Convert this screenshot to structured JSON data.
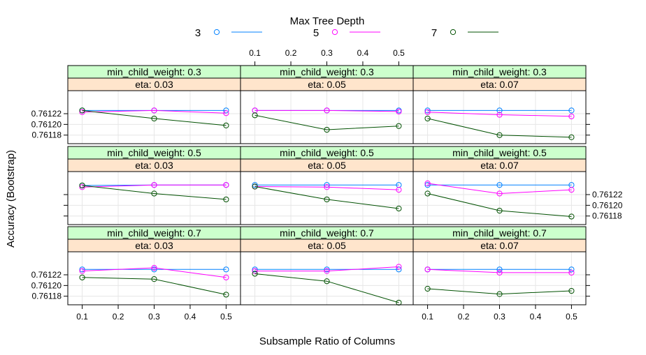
{
  "chart_data": {
    "type": "line",
    "title": "",
    "legend": {
      "title": "Max Tree Depth",
      "placement": "top",
      "entries": [
        "3",
        "5",
        "7"
      ]
    },
    "xlabel": "Subsample Ratio of Columns",
    "ylabel": "Accuracy (Bootstrap)",
    "x": [
      0.1,
      0.3,
      0.5
    ],
    "xlim": [
      0.06,
      0.54
    ],
    "ylim": [
      0.761164,
      0.761263
    ],
    "x_ticks": [
      "0.1",
      "0.2",
      "0.3",
      "0.4",
      "0.5"
    ],
    "y_ticks": [
      "0.76118",
      "0.76120",
      "0.76122"
    ],
    "grid": true,
    "colors": {
      "3": "#0080ff",
      "5": "#ff00ff",
      "7": "#005000",
      "strip_top": "#ccffcc",
      "strip_bottom": "#ffe5cc"
    },
    "panels": [
      {
        "row": 0,
        "col": 0,
        "strip_top": "min_child_weight: 0.3",
        "strip_bottom": "eta: 0.03",
        "series": [
          {
            "name": "3",
            "values": [
              0.761226,
              0.761226,
              0.761226
            ]
          },
          {
            "name": "5",
            "values": [
              0.761223,
              0.761226,
              0.761221
            ]
          },
          {
            "name": "7",
            "values": [
              0.761226,
              0.761211,
              0.761198
            ]
          }
        ]
      },
      {
        "row": 0,
        "col": 1,
        "strip_top": "min_child_weight: 0.3",
        "strip_bottom": "eta: 0.05",
        "series": [
          {
            "name": "3",
            "values": [
              0.761226,
              0.761226,
              0.761226
            ]
          },
          {
            "name": "5",
            "values": [
              0.761226,
              0.761226,
              0.761224
            ]
          },
          {
            "name": "7",
            "values": [
              0.761217,
              0.76119,
              0.761197
            ]
          }
        ]
      },
      {
        "row": 0,
        "col": 2,
        "strip_top": "min_child_weight: 0.3",
        "strip_bottom": "eta: 0.07",
        "series": [
          {
            "name": "3",
            "values": [
              0.761226,
              0.761226,
              0.761226
            ]
          },
          {
            "name": "5",
            "values": [
              0.761223,
              0.761218,
              0.761215
            ]
          },
          {
            "name": "7",
            "values": [
              0.761211,
              0.76118,
              0.761176
            ]
          }
        ]
      },
      {
        "row": 1,
        "col": 0,
        "strip_top": "min_child_weight: 0.5",
        "strip_bottom": "eta: 0.03",
        "series": [
          {
            "name": "3",
            "values": [
              0.761237,
              0.761238,
              0.761238
            ]
          },
          {
            "name": "5",
            "values": [
              0.761234,
              0.761238,
              0.761238
            ]
          },
          {
            "name": "7",
            "values": [
              0.761237,
              0.761222,
              0.761211
            ]
          }
        ]
      },
      {
        "row": 1,
        "col": 1,
        "strip_top": "min_child_weight: 0.5",
        "strip_bottom": "eta: 0.05",
        "series": [
          {
            "name": "3",
            "values": [
              0.761238,
              0.761238,
              0.761238
            ]
          },
          {
            "name": "5",
            "values": [
              0.761235,
              0.761234,
              0.761229
            ]
          },
          {
            "name": "7",
            "values": [
              0.761235,
              0.761211,
              0.761194
            ]
          }
        ]
      },
      {
        "row": 1,
        "col": 2,
        "strip_top": "min_child_weight: 0.5",
        "strip_bottom": "eta: 0.07",
        "series": [
          {
            "name": "3",
            "values": [
              0.761238,
              0.761238,
              0.761238
            ]
          },
          {
            "name": "5",
            "values": [
              0.761241,
              0.761222,
              0.761229
            ]
          },
          {
            "name": "7",
            "values": [
              0.761222,
              0.76119,
              0.761179
            ]
          }
        ]
      },
      {
        "row": 2,
        "col": 0,
        "strip_top": "min_child_weight: 0.7",
        "strip_bottom": "eta: 0.03",
        "series": [
          {
            "name": "3",
            "values": [
              0.76123,
              0.76123,
              0.76123
            ]
          },
          {
            "name": "5",
            "values": [
              0.761227,
              0.761233,
              0.761215
            ]
          },
          {
            "name": "7",
            "values": [
              0.761215,
              0.761212,
              0.761183
            ]
          }
        ]
      },
      {
        "row": 2,
        "col": 1,
        "strip_top": "min_child_weight: 0.7",
        "strip_bottom": "eta: 0.05",
        "series": [
          {
            "name": "3",
            "values": [
              0.76123,
              0.76123,
              0.76123
            ]
          },
          {
            "name": "5",
            "values": [
              0.761227,
              0.761227,
              0.761235
            ]
          },
          {
            "name": "7",
            "values": [
              0.761222,
              0.761208,
              0.761168
            ]
          }
        ]
      },
      {
        "row": 2,
        "col": 2,
        "strip_top": "min_child_weight: 0.7",
        "strip_bottom": "eta: 0.07",
        "series": [
          {
            "name": "3",
            "values": [
              0.76123,
              0.76123,
              0.76123
            ]
          },
          {
            "name": "5",
            "values": [
              0.76123,
              0.761224,
              0.761224
            ]
          },
          {
            "name": "7",
            "values": [
              0.761194,
              0.761184,
              0.76119
            ]
          }
        ]
      }
    ]
  }
}
